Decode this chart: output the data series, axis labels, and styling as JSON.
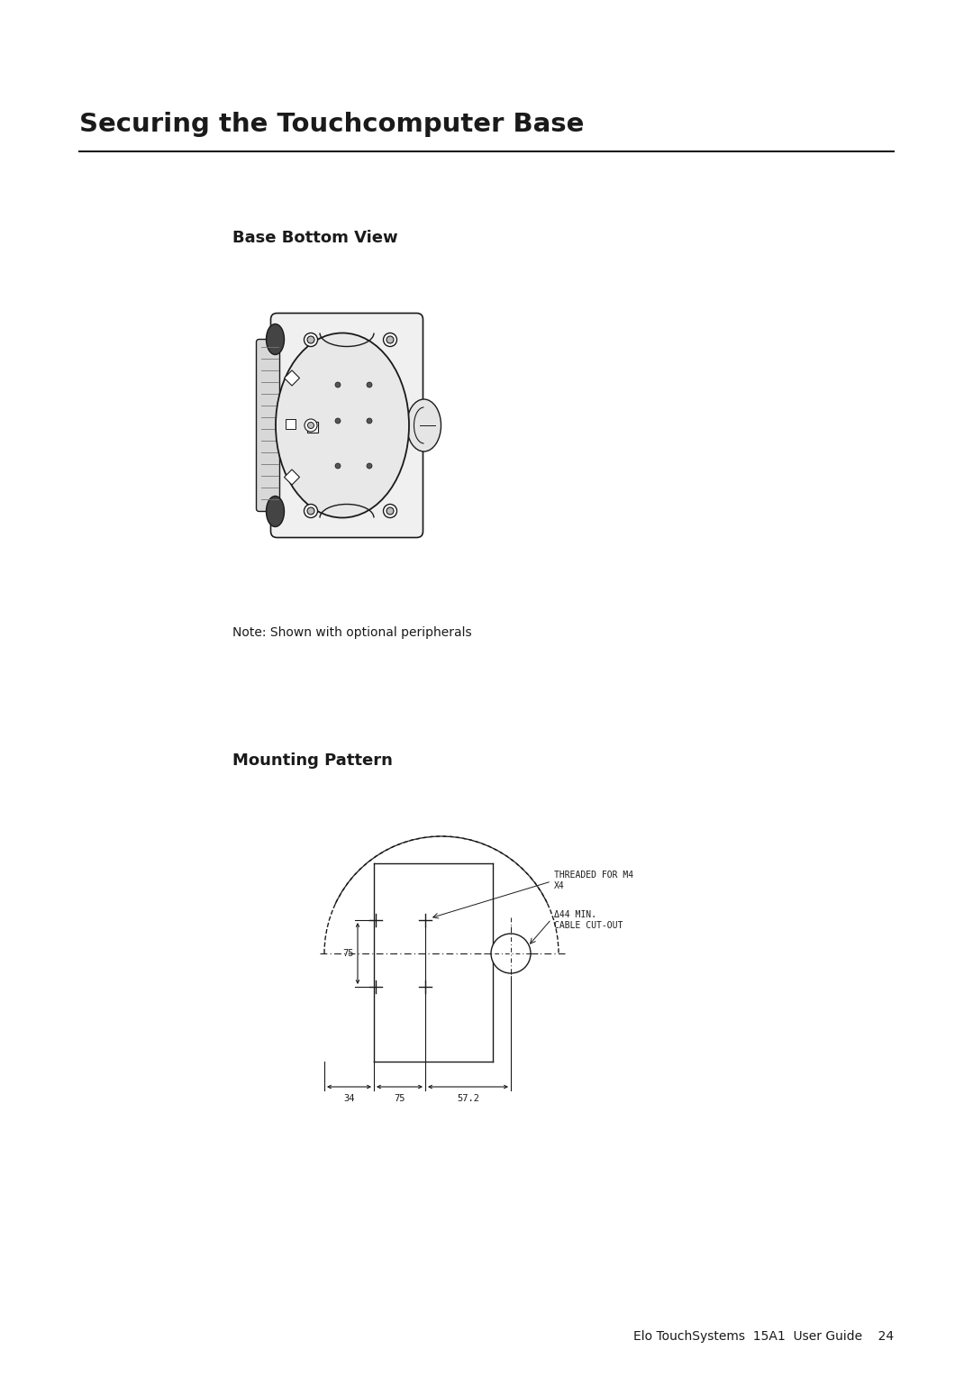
{
  "title": "Securing the Touchcomputer Base",
  "subtitle_bbv": "Base Bottom View",
  "subtitle_mp": "Mounting Pattern",
  "note_text": "Note: Shown with optional peripherals",
  "footer_text": "Elo TouchSystems  15A1  User Guide    24",
  "annotation_threaded": "THREADED FOR M4\nX4",
  "annotation_cable": "Δ44 MIN.\nCABLE CUT-OUT",
  "dim_75": "75",
  "dim_34": "34",
  "dim_75b": "75",
  "dim_572": "57.2",
  "bg_color": "#ffffff",
  "line_color": "#1a1a1a",
  "title_fontsize": 21,
  "subtitle_fontsize": 13,
  "note_fontsize": 10,
  "footer_fontsize": 10,
  "annotation_fontsize": 7
}
